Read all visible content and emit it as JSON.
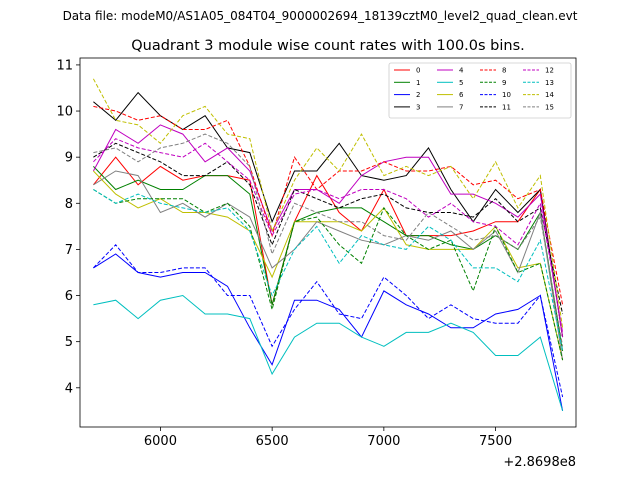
{
  "chart_data": {
    "type": "line",
    "suptitle": "Data file: modeM0/AS1A05_084T04_9000002694_18139cztM0_level2_quad_clean.evt",
    "title": "Quadrant 3 module wise count rates with 100.0s bins.",
    "xlabel": "",
    "ylabel": "",
    "x_offset_label": "+2.8698e8",
    "xlim": [
      5640,
      7860
    ],
    "ylim": [
      3.15,
      11.15
    ],
    "xticks": [
      6000,
      6500,
      7000,
      7500
    ],
    "yticks": [
      4,
      5,
      6,
      7,
      8,
      9,
      10,
      11
    ],
    "x": [
      5700,
      5800,
      5900,
      6000,
      6100,
      6200,
      6300,
      6400,
      6500,
      6600,
      6700,
      6800,
      6900,
      7000,
      7100,
      7200,
      7300,
      7400,
      7500,
      7600,
      7700,
      7800
    ],
    "legend_position": "top-right",
    "series": [
      {
        "name": "0",
        "color": "#ff0000",
        "dash": "solid",
        "values": [
          8.4,
          9.0,
          8.4,
          8.8,
          8.5,
          8.6,
          8.6,
          8.5,
          5.8,
          7.6,
          8.6,
          7.8,
          7.4,
          8.3,
          7.3,
          7.3,
          7.3,
          7.4,
          7.6,
          7.6,
          8.3,
          5.1
        ]
      },
      {
        "name": "1",
        "color": "#008000",
        "dash": "solid",
        "values": [
          8.8,
          8.3,
          8.5,
          8.3,
          8.3,
          8.6,
          8.6,
          8.2,
          5.8,
          7.6,
          7.8,
          7.9,
          7.9,
          7.6,
          7.3,
          7.3,
          7.1,
          7.0,
          7.3,
          7.0,
          7.8,
          4.8
        ]
      },
      {
        "name": "2",
        "color": "#0000ff",
        "dash": "solid",
        "values": [
          6.6,
          6.9,
          6.5,
          6.4,
          6.5,
          6.5,
          6.2,
          5.3,
          4.5,
          5.9,
          5.9,
          5.7,
          5.1,
          6.1,
          5.8,
          5.6,
          5.3,
          5.3,
          5.6,
          5.7,
          6.0,
          3.5
        ]
      },
      {
        "name": "3",
        "color": "#000000",
        "dash": "solid",
        "values": [
          10.2,
          9.8,
          10.4,
          9.9,
          9.6,
          9.9,
          9.2,
          9.1,
          7.6,
          8.7,
          8.7,
          9.3,
          8.6,
          8.5,
          8.6,
          9.2,
          8.3,
          7.6,
          8.3,
          7.8,
          8.3,
          5.1
        ]
      },
      {
        "name": "4",
        "color": "#c000c0",
        "dash": "solid",
        "values": [
          8.7,
          9.6,
          9.3,
          9.7,
          9.5,
          8.9,
          9.2,
          8.7,
          7.4,
          8.3,
          8.3,
          8.0,
          8.6,
          8.9,
          9.0,
          9.0,
          8.2,
          8.2,
          8.0,
          7.7,
          8.2,
          5.1
        ]
      },
      {
        "name": "5",
        "color": "#00bfbf",
        "dash": "solid",
        "values": [
          5.8,
          5.9,
          5.5,
          5.9,
          6.0,
          5.6,
          5.6,
          5.5,
          4.3,
          5.1,
          5.4,
          5.4,
          5.1,
          4.9,
          5.2,
          5.2,
          5.4,
          5.2,
          4.7,
          4.7,
          5.1,
          3.5
        ]
      },
      {
        "name": "6",
        "color": "#bfbf00",
        "dash": "solid",
        "values": [
          8.7,
          8.2,
          7.9,
          8.1,
          7.8,
          7.8,
          7.7,
          7.4,
          6.4,
          7.6,
          7.6,
          7.6,
          7.4,
          7.9,
          7.1,
          7.0,
          7.0,
          7.0,
          7.5,
          6.6,
          6.7,
          4.6
        ]
      },
      {
        "name": "7",
        "color": "#808080",
        "dash": "solid",
        "values": [
          8.4,
          8.7,
          8.6,
          7.8,
          8.0,
          7.7,
          8.0,
          7.7,
          6.6,
          7.0,
          7.6,
          7.4,
          7.2,
          7.1,
          7.3,
          7.2,
          7.4,
          7.0,
          7.4,
          6.5,
          7.8,
          4.6
        ]
      },
      {
        "name": "8",
        "color": "#ff0000",
        "dash": "dashed",
        "values": [
          10.1,
          10.0,
          9.8,
          9.9,
          9.6,
          9.6,
          9.8,
          8.8,
          7.3,
          9.0,
          8.3,
          8.7,
          8.7,
          8.9,
          8.7,
          8.7,
          8.8,
          8.4,
          8.5,
          8.1,
          8.3,
          5.8
        ]
      },
      {
        "name": "9",
        "color": "#008000",
        "dash": "dashed",
        "values": [
          8.3,
          8.0,
          8.1,
          8.1,
          8.1,
          7.8,
          8.0,
          7.5,
          5.7,
          7.6,
          7.7,
          7.1,
          6.7,
          7.9,
          7.3,
          7.0,
          7.2,
          6.1,
          7.5,
          6.5,
          6.7,
          4.6
        ]
      },
      {
        "name": "10",
        "color": "#0000ff",
        "dash": "dashed",
        "values": [
          6.6,
          7.1,
          6.5,
          6.5,
          6.6,
          6.6,
          6.0,
          6.0,
          4.9,
          5.7,
          6.3,
          5.6,
          5.5,
          6.4,
          6.0,
          5.5,
          5.8,
          5.5,
          5.4,
          5.4,
          6.0,
          3.8
        ]
      },
      {
        "name": "11",
        "color": "#000000",
        "dash": "dashed",
        "values": [
          9.0,
          9.3,
          9.1,
          8.9,
          8.6,
          8.6,
          8.9,
          8.4,
          7.1,
          8.3,
          8.1,
          7.9,
          8.1,
          8.2,
          7.9,
          7.8,
          7.8,
          7.7,
          8.1,
          7.6,
          7.9,
          5.6
        ]
      },
      {
        "name": "12",
        "color": "#c000c0",
        "dash": "dashed",
        "values": [
          8.9,
          9.4,
          9.2,
          9.1,
          9.0,
          9.3,
          8.9,
          8.5,
          7.3,
          8.2,
          8.3,
          8.1,
          8.3,
          8.3,
          8.1,
          7.7,
          8.0,
          7.6,
          7.5,
          7.1,
          8.0,
          5.2
        ]
      },
      {
        "name": "13",
        "color": "#00bfbf",
        "dash": "dashed",
        "values": [
          8.3,
          8.0,
          8.2,
          8.0,
          7.9,
          7.8,
          7.9,
          7.4,
          6.0,
          7.0,
          7.5,
          6.7,
          7.3,
          7.1,
          7.0,
          7.5,
          7.2,
          6.6,
          6.6,
          6.3,
          7.2,
          4.8
        ]
      },
      {
        "name": "14",
        "color": "#bfbf00",
        "dash": "dashed",
        "values": [
          10.7,
          9.8,
          9.7,
          9.3,
          9.9,
          10.1,
          9.5,
          9.4,
          7.4,
          8.5,
          9.2,
          8.7,
          9.5,
          8.6,
          8.8,
          8.6,
          8.8,
          8.1,
          8.9,
          7.9,
          8.6,
          5.3
        ]
      },
      {
        "name": "15",
        "color": "#808080",
        "dash": "dashed",
        "values": [
          9.1,
          9.2,
          8.9,
          9.2,
          9.3,
          9.5,
          9.3,
          8.8,
          6.9,
          8.0,
          7.8,
          7.6,
          7.6,
          7.3,
          7.2,
          7.8,
          7.5,
          7.2,
          7.3,
          7.0,
          7.7,
          4.9
        ]
      }
    ]
  }
}
